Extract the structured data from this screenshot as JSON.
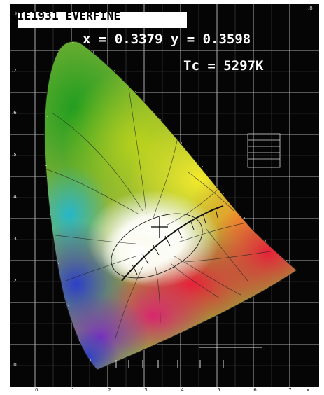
{
  "diagram": {
    "title": "CIE1931 EVERFINE",
    "readout": {
      "chromaticity": "x = 0.3379 y = 0.3598",
      "cct": "Tc = 5297K"
    },
    "x_ticks": [
      "0",
      ".1",
      ".2",
      ".3",
      ".4",
      ".5",
      ".6",
      ".7",
      ".8"
    ],
    "y_ticks": [
      ".0",
      ".1",
      ".2",
      ".3",
      ".4",
      ".5",
      ".6",
      ".7",
      ".8"
    ],
    "axis_letters": {
      "x": "x",
      "y": "y"
    },
    "measured_point": {
      "x": 0.3379,
      "y": 0.3598
    },
    "colors": {
      "background": "#050505",
      "grid": "#bdbdbd",
      "locus": "#111111",
      "crosshair": "#000000",
      "title_box": "#ffffff",
      "readout_text": "#ffffff"
    }
  }
}
